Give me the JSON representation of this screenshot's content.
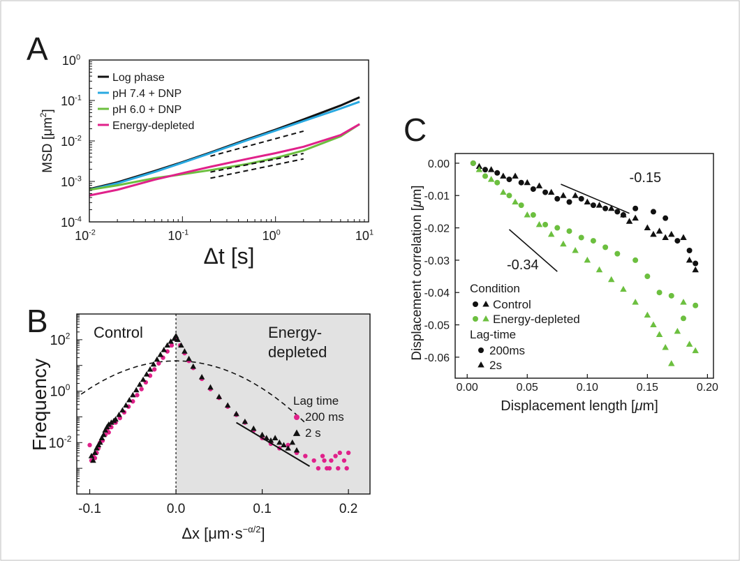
{
  "panels": {
    "A": {
      "letter": "A"
    },
    "B": {
      "letter": "B"
    },
    "C": {
      "letter": "C"
    }
  },
  "colors": {
    "log_phase": "#111111",
    "ph74": "#29a9e1",
    "ph60": "#6cbf3f",
    "energy_depleted_magenta": "#e0218a",
    "energy_depleted_green": "#6cbf3f",
    "control": "#111111",
    "shade": "#e2e2e2"
  },
  "chart_data": [
    {
      "id": "A",
      "type": "line",
      "xscale": "log",
      "yscale": "log",
      "xlabel": "Δt [s]",
      "ylabel_main": "MSD [μm",
      "ylabel_sup": "2",
      "ylabel_end": "]",
      "xlim": [
        0.01,
        10
      ],
      "ylim": [
        0.0001,
        1
      ],
      "xticks": [
        {
          "value": 0.01,
          "base": "10",
          "exp": "-2"
        },
        {
          "value": 0.1,
          "base": "10",
          "exp": "-1"
        },
        {
          "value": 1,
          "base": "10",
          "exp": "0"
        },
        {
          "value": 10,
          "base": "10",
          "exp": "1"
        }
      ],
      "yticks": [
        {
          "value": 0.0001,
          "base": "10",
          "exp": "-4"
        },
        {
          "value": 0.001,
          "base": "10",
          "exp": "-3"
        },
        {
          "value": 0.01,
          "base": "10",
          "exp": "-2"
        },
        {
          "value": 0.1,
          "base": "10",
          "exp": "-1"
        },
        {
          "value": 1,
          "base": "10",
          "exp": "0"
        }
      ],
      "legend_position": "top-left",
      "series": [
        {
          "name": "Log phase",
          "color": "#111111",
          "x": [
            0.01,
            0.02,
            0.05,
            0.1,
            0.2,
            0.5,
            1,
            2,
            5,
            8
          ],
          "y": [
            0.00065,
            0.00095,
            0.0018,
            0.003,
            0.0052,
            0.011,
            0.019,
            0.034,
            0.075,
            0.12
          ]
        },
        {
          "name": "pH 7.4 + DNP",
          "color": "#29a9e1",
          "x": [
            0.01,
            0.02,
            0.05,
            0.1,
            0.2,
            0.5,
            1,
            2,
            5,
            8
          ],
          "y": [
            0.00062,
            0.0009,
            0.0017,
            0.0029,
            0.005,
            0.0105,
            0.018,
            0.031,
            0.063,
            0.093
          ]
        },
        {
          "name": "pH 6.0 + DNP",
          "color": "#6cbf3f",
          "x": [
            0.01,
            0.02,
            0.05,
            0.1,
            0.2,
            0.5,
            1,
            2,
            5,
            8
          ],
          "y": [
            0.00062,
            0.0008,
            0.0012,
            0.0015,
            0.0019,
            0.0027,
            0.0038,
            0.0058,
            0.013,
            0.026
          ]
        },
        {
          "name": "Energy-depleted",
          "color": "#e0218a",
          "x": [
            0.01,
            0.02,
            0.05,
            0.1,
            0.2,
            0.5,
            1,
            2,
            5,
            8
          ],
          "y": [
            0.00045,
            0.00062,
            0.0011,
            0.0016,
            0.0023,
            0.0036,
            0.005,
            0.0072,
            0.014,
            0.026
          ]
        }
      ],
      "reference_lines": [
        {
          "x": [
            0.2,
            2
          ],
          "y": [
            0.0042,
            0.0175
          ]
        },
        {
          "x": [
            0.2,
            2
          ],
          "y": [
            0.0017,
            0.0049
          ]
        },
        {
          "x": [
            0.2,
            2
          ],
          "y": [
            0.0012,
            0.0036
          ]
        }
      ]
    },
    {
      "id": "B",
      "type": "scatter",
      "yscale": "log",
      "xlabel_main": "Δx [μm·s",
      "xlabel_sup": "−α/2",
      "xlabel_end": "]",
      "ylabel": "Frequency",
      "xlim": [
        -0.115,
        0.225
      ],
      "ylim": [
        0.0001,
        1000
      ],
      "xticks": [
        -0.1,
        0,
        0.1,
        0.2
      ],
      "xticklabels": [
        "-0.1",
        "0.0",
        "0.1",
        "0.2"
      ],
      "yticks": [
        {
          "value": 0.01,
          "base": "10",
          "exp": "-2"
        },
        {
          "value": 1,
          "base": "10",
          "exp": "0"
        },
        {
          "value": 100,
          "base": "10",
          "exp": "2"
        }
      ],
      "region_labels": {
        "left": "Control",
        "right_line1": "Energy-",
        "right_line2": "depleted"
      },
      "legend_title": "Lag time",
      "legend_position": "right",
      "series": [
        {
          "name": "200 ms",
          "color": "#e0218a",
          "marker": "circle",
          "x": [
            -0.1,
            -0.098,
            -0.096,
            -0.094,
            -0.092,
            -0.09,
            -0.088,
            -0.085,
            -0.082,
            -0.08,
            -0.078,
            -0.075,
            -0.07,
            -0.065,
            -0.06,
            -0.055,
            -0.05,
            -0.045,
            -0.04,
            -0.035,
            -0.03,
            -0.025,
            -0.02,
            -0.015,
            -0.01,
            -0.005,
            0,
            0.005,
            0.01,
            0.015,
            0.02,
            0.03,
            0.04,
            0.05,
            0.06,
            0.07,
            0.08,
            0.09,
            0.1,
            0.11,
            0.12,
            0.13,
            0.14,
            0.15,
            0.16,
            0.17,
            0.175,
            0.18,
            0.185,
            0.19,
            0.195,
            0.2,
            0.165,
            0.172,
            0.178,
            0.188,
            0.198
          ],
          "y": [
            0.008,
            0.002,
            0.003,
            0.0025,
            0.004,
            0.006,
            0.01,
            0.012,
            0.02,
            0.03,
            0.025,
            0.04,
            0.06,
            0.09,
            0.15,
            0.25,
            0.4,
            0.7,
            1.2,
            2.2,
            4,
            7,
            12,
            20,
            35,
            60,
            100,
            60,
            30,
            15,
            8,
            3,
            1.2,
            0.55,
            0.25,
            0.12,
            0.06,
            0.03,
            0.015,
            0.009,
            0.006,
            0.008,
            0.004,
            0.003,
            0.002,
            0.003,
            0.001,
            0.002,
            0.003,
            0.004,
            0.002,
            0.004,
            0.001,
            0.002,
            0.001,
            0.001,
            0.001
          ]
        },
        {
          "name": "2 s",
          "color": "#111111",
          "marker": "triangle",
          "x": [
            -0.098,
            -0.096,
            -0.094,
            -0.092,
            -0.09,
            -0.088,
            -0.086,
            -0.084,
            -0.082,
            -0.08,
            -0.078,
            -0.075,
            -0.072,
            -0.07,
            -0.066,
            -0.062,
            -0.058,
            -0.054,
            -0.05,
            -0.046,
            -0.042,
            -0.038,
            -0.034,
            -0.03,
            -0.026,
            -0.022,
            -0.018,
            -0.014,
            -0.01,
            -0.006,
            -0.002,
            0,
            0.002,
            0.006,
            0.01,
            0.015,
            0.02,
            0.03,
            0.04,
            0.05,
            0.06,
            0.07,
            0.08,
            0.09,
            0.1,
            0.105,
            0.11,
            0.115,
            0.12,
            0.125,
            0.13,
            0.135,
            0.14
          ],
          "y": [
            0.003,
            0.002,
            0.004,
            0.006,
            0.008,
            0.01,
            0.015,
            0.02,
            0.03,
            0.04,
            0.05,
            0.06,
            0.07,
            0.08,
            0.12,
            0.18,
            0.28,
            0.45,
            0.7,
            1.1,
            1.8,
            2.8,
            4.5,
            7,
            11,
            17,
            26,
            40,
            60,
            85,
            110,
            140,
            100,
            60,
            35,
            18,
            9,
            3.5,
            1.4,
            0.6,
            0.28,
            0.13,
            0.065,
            0.035,
            0.02,
            0.015,
            0.012,
            0.015,
            0.01,
            0.008,
            0.006,
            0.01,
            0.005
          ]
        }
      ],
      "fit_curves": [
        {
          "style": "dashed",
          "type": "gaussian",
          "amplitude": 15,
          "center": 0,
          "sigma": 0.045
        },
        {
          "style": "solid",
          "type": "exponential",
          "x_range": [
            0.07,
            0.155
          ]
        }
      ]
    },
    {
      "id": "C",
      "type": "scatter",
      "xlabel_main": "Displacement length [",
      "xlabel_unit": "μ",
      "xlabel_end": "m]",
      "ylabel_main": "Displacement correlation [",
      "ylabel_unit": "μ",
      "ylabel_end": "m]",
      "xlim": [
        -0.01,
        0.205
      ],
      "ylim": [
        -0.0665,
        0.003
      ],
      "xticks": [
        0,
        0.05,
        0.1,
        0.15,
        0.2
      ],
      "xticklabels": [
        "0.00",
        "0.05",
        "0.10",
        "0.15",
        "0.20"
      ],
      "yticks": [
        0,
        -0.01,
        -0.02,
        -0.03,
        -0.04,
        -0.05,
        -0.06
      ],
      "yticklabels": [
        "0.00",
        "-0.01",
        "-0.02",
        "-0.03",
        "-0.04",
        "-0.05",
        "-0.06"
      ],
      "legend": {
        "condition_title": "Condition",
        "condition_items": [
          {
            "label": "Control",
            "color": "#111111"
          },
          {
            "label": "Energy-depleted",
            "color": "#6cbf3f"
          }
        ],
        "lag_title": "Lag-time",
        "lag_items": [
          {
            "label": "200ms",
            "marker": "circle"
          },
          {
            "label": "2s",
            "marker": "triangle"
          }
        ],
        "position": "bottom-left"
      },
      "slope_labels": [
        {
          "text": "-0.15",
          "line_x": [
            0.078,
            0.135
          ],
          "line_y": [
            -0.0065,
            -0.0155
          ],
          "label_x": 0.135,
          "label_y": -0.0058
        },
        {
          "text": "-0.34",
          "line_x": [
            0.035,
            0.075
          ],
          "line_y": [
            -0.0205,
            -0.0335
          ],
          "label_x": 0.033,
          "label_y": -0.0328
        }
      ],
      "series": [
        {
          "name": "Control 200ms",
          "color": "#111111",
          "marker": "circle",
          "x": [
            0.005,
            0.015,
            0.025,
            0.035,
            0.045,
            0.055,
            0.065,
            0.075,
            0.085,
            0.095,
            0.105,
            0.115,
            0.125,
            0.13,
            0.14,
            0.155,
            0.165,
            0.175,
            0.185,
            0.19
          ],
          "y": [
            0,
            -0.002,
            -0.003,
            -0.005,
            -0.006,
            -0.008,
            -0.009,
            -0.011,
            -0.012,
            -0.011,
            -0.013,
            -0.014,
            -0.015,
            -0.016,
            -0.014,
            -0.015,
            -0.017,
            -0.024,
            -0.027,
            -0.031
          ]
        },
        {
          "name": "Control 2s",
          "color": "#111111",
          "marker": "triangle",
          "x": [
            0.01,
            0.02,
            0.03,
            0.04,
            0.05,
            0.06,
            0.07,
            0.08,
            0.09,
            0.1,
            0.11,
            0.12,
            0.13,
            0.135,
            0.14,
            0.15,
            0.155,
            0.16,
            0.165,
            0.17,
            0.18,
            0.185,
            0.19
          ],
          "y": [
            -0.001,
            -0.002,
            -0.004,
            -0.004,
            -0.006,
            -0.007,
            -0.009,
            -0.01,
            -0.01,
            -0.012,
            -0.013,
            -0.014,
            -0.016,
            -0.018,
            -0.017,
            -0.02,
            -0.022,
            -0.021,
            -0.023,
            -0.022,
            -0.023,
            -0.03,
            -0.033
          ]
        },
        {
          "name": "Energy-depleted 200ms",
          "color": "#6cbf3f",
          "marker": "circle",
          "x": [
            0.005,
            0.015,
            0.025,
            0.035,
            0.045,
            0.055,
            0.065,
            0.075,
            0.085,
            0.095,
            0.105,
            0.115,
            0.125,
            0.14,
            0.15,
            0.16,
            0.17,
            0.18,
            0.19
          ],
          "y": [
            0,
            -0.004,
            -0.006,
            -0.01,
            -0.013,
            -0.016,
            -0.019,
            -0.02,
            -0.021,
            -0.023,
            -0.024,
            -0.026,
            -0.028,
            -0.03,
            -0.035,
            -0.04,
            -0.041,
            -0.048,
            -0.044
          ]
        },
        {
          "name": "Energy-depleted 2s",
          "color": "#6cbf3f",
          "marker": "triangle",
          "x": [
            0.01,
            0.02,
            0.03,
            0.04,
            0.05,
            0.06,
            0.07,
            0.08,
            0.09,
            0.1,
            0.11,
            0.12,
            0.13,
            0.14,
            0.15,
            0.155,
            0.16,
            0.165,
            0.17,
            0.175,
            0.18,
            0.185,
            0.19
          ],
          "y": [
            -0.002,
            -0.005,
            -0.009,
            -0.012,
            -0.016,
            -0.019,
            -0.022,
            -0.025,
            -0.027,
            -0.03,
            -0.033,
            -0.036,
            -0.039,
            -0.043,
            -0.047,
            -0.05,
            -0.053,
            -0.057,
            -0.062,
            -0.052,
            -0.043,
            -0.056,
            -0.058
          ]
        }
      ]
    }
  ]
}
